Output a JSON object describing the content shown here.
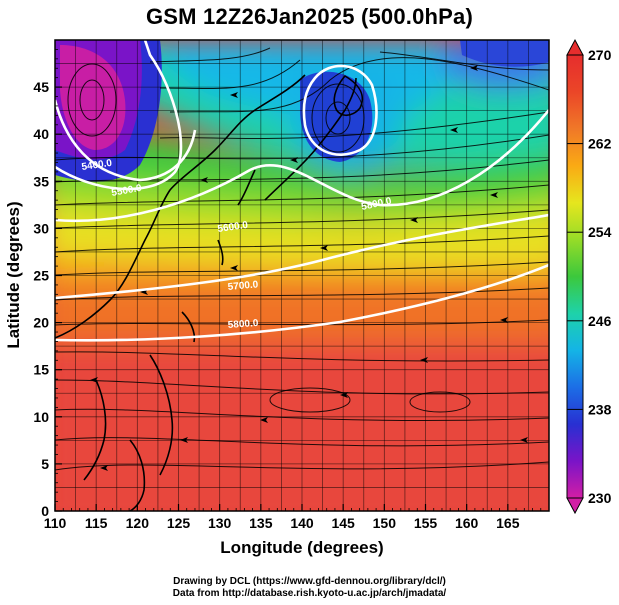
{
  "title": "GSM 12Z26Jan2025 (500.0hPa)",
  "axes": {
    "xlabel": "Longitude (degrees)",
    "ylabel": "Latitude  (degrees)",
    "x_ticks": [
      "110",
      "115",
      "120",
      "125",
      "130",
      "135",
      "140",
      "145",
      "150",
      "155",
      "160",
      "165"
    ],
    "y_ticks": [
      "0",
      "5",
      "10",
      "15",
      "20",
      "25",
      "30",
      "35",
      "40",
      "45"
    ]
  },
  "colorbar": {
    "ticks": [
      "230",
      "238",
      "246",
      "254",
      "262",
      "270"
    ],
    "colors": [
      "#d21ea5",
      "#7a14c8",
      "#2830d2",
      "#1c6ee6",
      "#14b4e6",
      "#1ed2aa",
      "#3cc83c",
      "#96dc28",
      "#e6e61e",
      "#faaa14",
      "#f07828",
      "#eb4628",
      "#e62d2d"
    ]
  },
  "contours": [
    {
      "label": "5400.0"
    },
    {
      "label": "5500.0"
    },
    {
      "label": "5600.0"
    },
    {
      "label": "5700.0"
    },
    {
      "label": "5800.0"
    },
    {
      "label": "5800.0"
    }
  ],
  "credits": {
    "line1": "Drawing by DCL (https://www.gfd-dennou.org/library/dcl/)",
    "line2": "Data from http://database.rish.kyoto-u.ac.jp/arch/jmadata/"
  },
  "chart_data": {
    "type": "heatmap",
    "title": "GSM 12Z26Jan2025 (500.0hPa)",
    "xlabel": "Longitude (degrees)",
    "ylabel": "Latitude  (degrees)",
    "xlim": [
      110,
      170
    ],
    "ylim": [
      0,
      50
    ],
    "colorbar_range": [
      230,
      270
    ],
    "colorbar_ticks": [
      230,
      238,
      246,
      254,
      262,
      270
    ],
    "contour_labels": [
      "5400.0",
      "5500.0",
      "5600.0",
      "5700.0",
      "5800.0"
    ],
    "overlays": [
      "temperature shading",
      "geopotential height contours",
      "wind streamlines",
      "coastlines"
    ]
  }
}
